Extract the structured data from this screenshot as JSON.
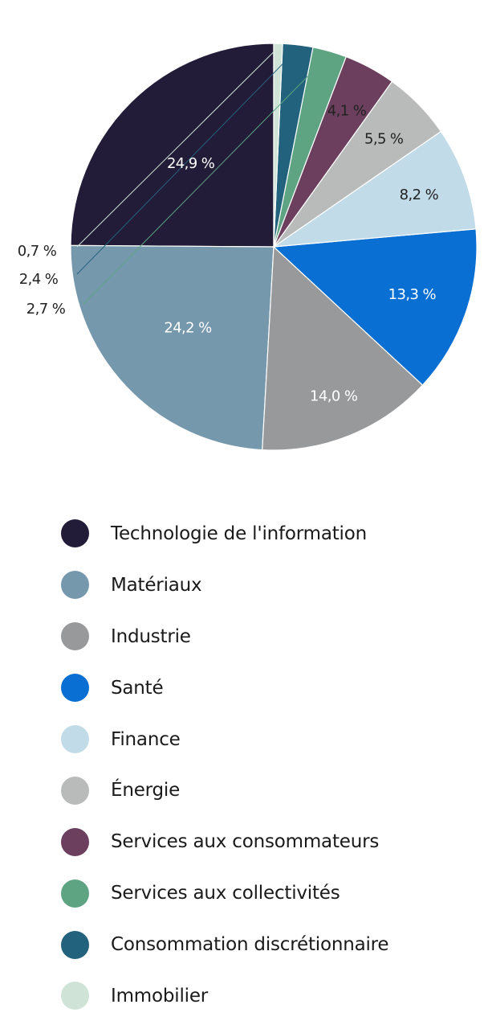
{
  "chart_data": {
    "type": "pie",
    "categories": [
      "Technologie de l'information",
      "Matériaux",
      "Industrie",
      "Santé",
      "Finance",
      "Énergie",
      "Services aux consommateurs",
      "Services aux collectivités",
      "Consommation discrétionnaire",
      "Immobilier"
    ],
    "values": [
      24.9,
      24.2,
      14.0,
      13.3,
      8.2,
      5.5,
      4.1,
      2.7,
      2.4,
      0.7
    ],
    "value_labels": [
      "24,9 %",
      "24,2 %",
      "14,0 %",
      "13,3 %",
      "8,2 %",
      "5,5 %",
      "4,1 %",
      "2,7 %",
      "2,4 %",
      "0,7 %"
    ],
    "colors": [
      "#221c38",
      "#7698ad",
      "#98999b",
      "#0a6fd2",
      "#c2dbe8",
      "#b9baba",
      "#6b3f5d",
      "#5ea483",
      "#23627c",
      "#cfe4d7"
    ],
    "label_colors": [
      "#ffffff",
      "#ffffff",
      "#ffffff",
      "#ffffff",
      "#222222",
      "#222222",
      "#222222",
      "#222222",
      "#222222",
      "#222222"
    ],
    "label_placement": [
      "inside",
      "inside",
      "inside",
      "inside",
      "inside",
      "inside",
      "inside",
      "outside",
      "outside",
      "outside"
    ],
    "start_angle": "12 o'clock, counter-clockwise",
    "legend_position": "below"
  }
}
